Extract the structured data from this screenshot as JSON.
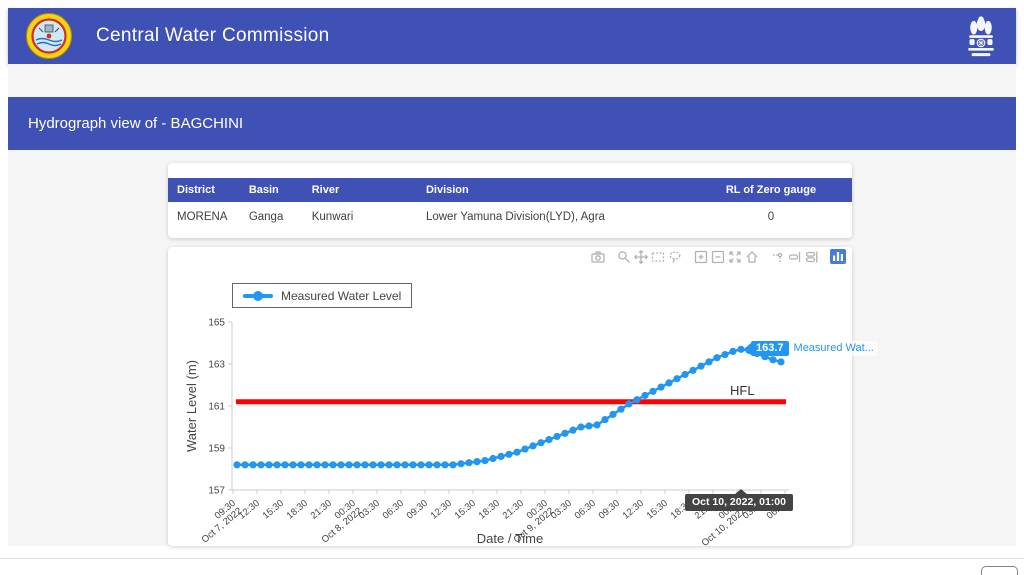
{
  "header": {
    "title": "Central Water Commission"
  },
  "page_title": "Hydrograph view of - BAGCHINI",
  "station_table": {
    "columns": [
      "District",
      "Basin",
      "River",
      "Division",
      "RL of Zero gauge"
    ],
    "rows": [
      {
        "district": "MORENA",
        "basin": "Ganga",
        "river": "Kunwari",
        "division": "Lower Yamuna Division(LYD), Agra",
        "rl_of_zero_gauge": "0"
      }
    ]
  },
  "modebar": {
    "icons": [
      "camera-icon",
      "zoom-icon",
      "pan-icon",
      "box-select-icon",
      "lasso-select-icon",
      "zoom-in-icon",
      "zoom-out-icon",
      "autoscale-icon",
      "reset-axes-icon",
      "toggle-spikelines-icon",
      "hover-closest-icon",
      "hover-compare-icon",
      "plotly-logo-icon"
    ]
  },
  "hover": {
    "point_label": "163.7",
    "series_label_truncated": "Measured Wat...",
    "axis_label": "Oct 10, 2022, 01:00"
  },
  "colors": {
    "header_blue": "#3f51b5",
    "trace_blue": "#2196f3",
    "hfl_red": "#ff0000"
  },
  "chart_data": {
    "type": "line",
    "xlabel": "Date / Time",
    "ylabel": "Water Level (m)",
    "ylim": [
      157,
      165
    ],
    "yticks": [
      157,
      159,
      161,
      163,
      165
    ],
    "grid": false,
    "legend": {
      "label": "Measured Water Level",
      "position": "top-left"
    },
    "hfl": {
      "label": "HFL",
      "value": 161.2,
      "color": "#ff0000"
    },
    "series": [
      {
        "name": "Measured Water Level",
        "color": "#2196f3",
        "start": "2022-10-07 10:00",
        "interval_hours": 1,
        "values": [
          158.2,
          158.2,
          158.2,
          158.2,
          158.2,
          158.2,
          158.2,
          158.2,
          158.2,
          158.2,
          158.2,
          158.2,
          158.2,
          158.2,
          158.2,
          158.2,
          158.2,
          158.2,
          158.2,
          158.2,
          158.2,
          158.2,
          158.2,
          158.2,
          158.2,
          158.2,
          158.2,
          158.2,
          158.25,
          158.3,
          158.35,
          158.4,
          158.5,
          158.6,
          158.7,
          158.8,
          158.95,
          159.1,
          159.25,
          159.4,
          159.55,
          159.7,
          159.85,
          160.0,
          160.05,
          160.1,
          160.35,
          160.6,
          160.85,
          161.1,
          161.3,
          161.5,
          161.7,
          161.9,
          162.1,
          162.3,
          162.5,
          162.7,
          162.9,
          163.1,
          163.3,
          163.45,
          163.6,
          163.7,
          163.65,
          163.5,
          163.35,
          163.2,
          163.1
        ]
      }
    ],
    "xticks": [
      {
        "t": 0,
        "time": "09:30",
        "date": "Oct 7, 2022"
      },
      {
        "t": 3,
        "time": "12:30"
      },
      {
        "t": 6,
        "time": "15:30"
      },
      {
        "t": 9,
        "time": "18:30"
      },
      {
        "t": 12,
        "time": "21:30"
      },
      {
        "t": 15,
        "time": "00:30",
        "date": "Oct 8, 2022"
      },
      {
        "t": 18,
        "time": "03:30"
      },
      {
        "t": 21,
        "time": "06:30"
      },
      {
        "t": 24,
        "time": "09:30"
      },
      {
        "t": 27,
        "time": "12:30"
      },
      {
        "t": 30,
        "time": "15:30"
      },
      {
        "t": 33,
        "time": "18:30"
      },
      {
        "t": 36,
        "time": "21:30"
      },
      {
        "t": 39,
        "time": "00:30",
        "date": "Oct 9, 2022"
      },
      {
        "t": 42,
        "time": "03:30"
      },
      {
        "t": 45,
        "time": "06:30"
      },
      {
        "t": 48,
        "time": "09:30"
      },
      {
        "t": 51,
        "time": "12:30"
      },
      {
        "t": 54,
        "time": "15:30"
      },
      {
        "t": 57,
        "time": "18:30"
      },
      {
        "t": 60,
        "time": "21:30"
      },
      {
        "t": 63,
        "time": "00:30",
        "date": "Oct 10, 2022"
      },
      {
        "t": 66,
        "time": "03:30"
      },
      {
        "t": 69,
        "time": "06:30"
      }
    ],
    "hovered_point": {
      "x_index": 63,
      "value": 163.7
    }
  }
}
